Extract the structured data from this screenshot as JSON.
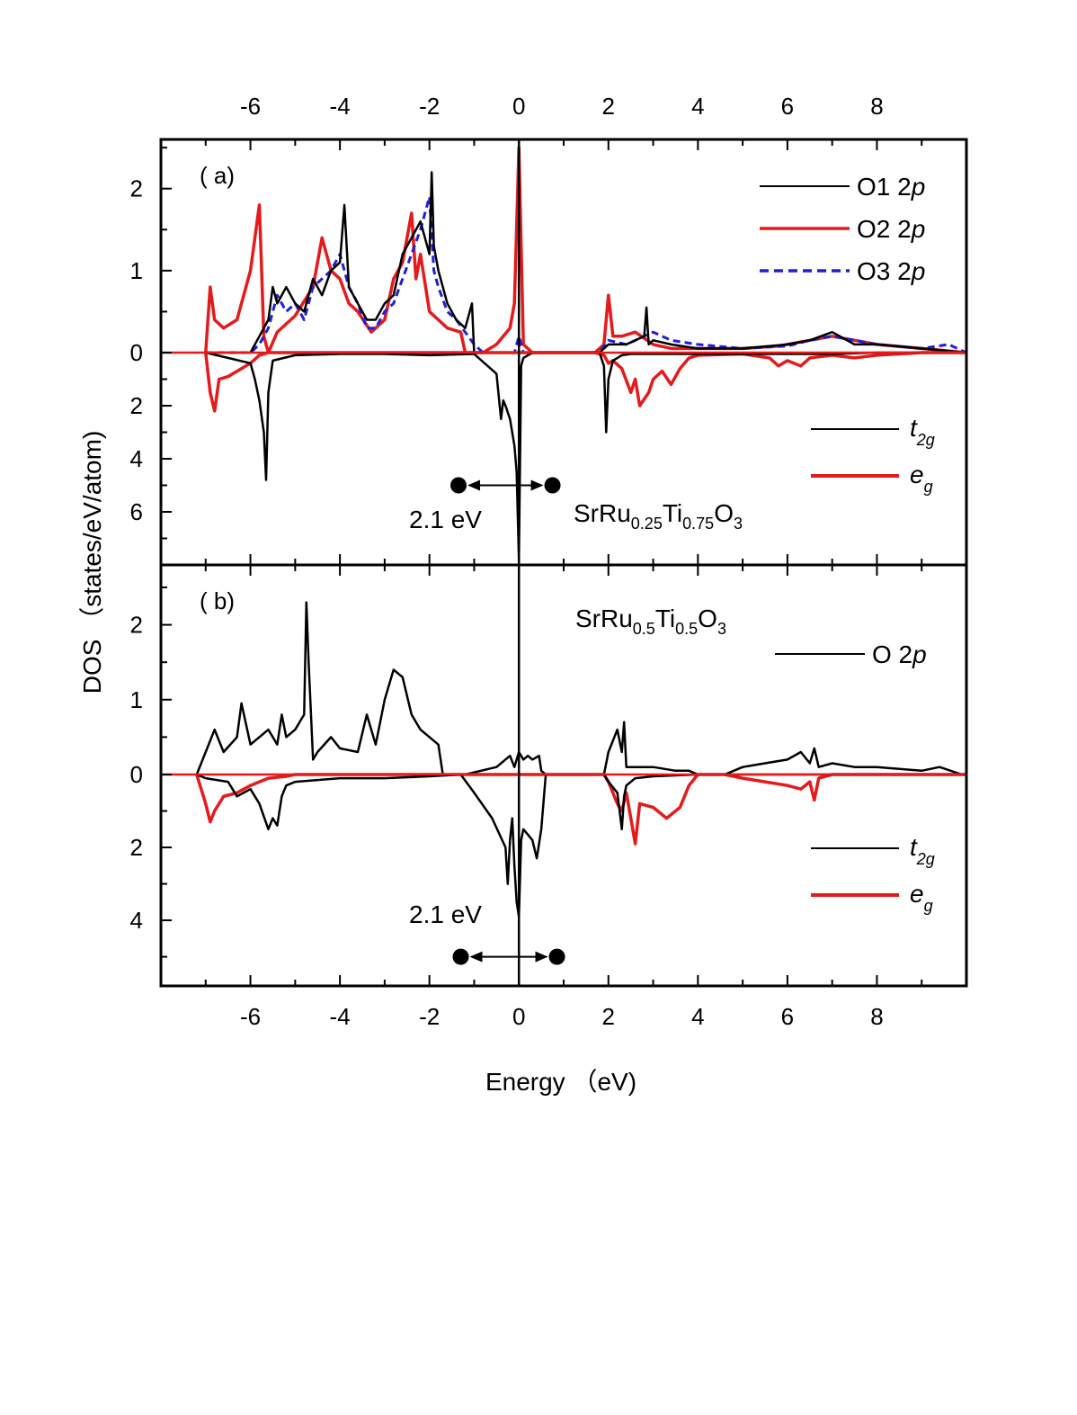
{
  "chart_data": {
    "type": "line",
    "xlabel": "Energy （eV)",
    "ylabel": "DOS （states/eV/atom)",
    "xlim": [
      -8,
      10
    ],
    "x_ticks": [
      -6,
      -4,
      -2,
      0,
      2,
      4,
      6,
      8
    ],
    "x_tick_labels": [
      "-6",
      "-4",
      "-2",
      "0",
      "2",
      "4",
      "6",
      "8"
    ],
    "panels": [
      {
        "label": "( a)",
        "compound": {
          "base": "SrRu",
          "s1": "0.25",
          "mid": "Ti",
          "s2": "0.75",
          "end": "O",
          "s3": "3"
        },
        "ylim": [
          -8.0,
          2.6
        ],
        "y_ticks": [
          2,
          1,
          0,
          -2,
          -4,
          -6
        ],
        "y_tick_labels": [
          "2",
          "1",
          "0",
          "2",
          "4",
          "6"
        ],
        "gap_label": "2.1 eV",
        "gap_x": [
          -1.35,
          0.75
        ],
        "gap_y": -5.0,
        "legend_top": [
          {
            "name": "O1 2",
            "italic": "p",
            "color": "#000000",
            "style": "solid"
          },
          {
            "name": "O2 2",
            "italic": "p",
            "color": "#e41a1c",
            "style": "solid"
          },
          {
            "name": "O3 2",
            "italic": "p",
            "color": "#1f1fd6",
            "style": "dashed"
          }
        ],
        "legend_bottom": [
          {
            "name": "t",
            "sub": "2g",
            "color": "#000000"
          },
          {
            "name": "e",
            "sub": "g",
            "color": "#e41a1c"
          }
        ],
        "series": [
          {
            "color": "#e41a1c",
            "width": 3.5,
            "dash": "",
            "x": [
              -7.0,
              -6.9,
              -6.8,
              -6.6,
              -6.3,
              -6.0,
              -5.8,
              -5.7,
              -5.6,
              -5.4,
              -5.0,
              -4.6,
              -4.4,
              -4.2,
              -4.0,
              -3.8,
              -3.6,
              -3.3,
              -3.0,
              -2.8,
              -2.6,
              -2.4,
              -2.3,
              -2.2,
              -2.0,
              -1.8,
              -1.6,
              -1.3,
              -1.2,
              -1.1,
              -0.8,
              -0.5,
              -0.2,
              -0.1,
              0.0,
              0.1,
              0.3,
              1.7,
              1.9,
              2.0,
              2.1,
              2.3,
              2.6,
              3.0,
              3.4,
              4.0,
              5.0,
              5.8,
              6.5,
              7.0,
              7.5,
              8.0,
              9.0,
              10.0
            ],
            "y": [
              0.0,
              0.8,
              0.4,
              0.3,
              0.4,
              1.0,
              1.8,
              0.2,
              0.0,
              0.25,
              0.45,
              0.8,
              1.4,
              1.0,
              0.9,
              0.6,
              0.5,
              0.25,
              0.4,
              0.9,
              1.1,
              1.7,
              0.9,
              1.2,
              0.5,
              0.4,
              0.3,
              0.25,
              0.0,
              0.0,
              0.0,
              0.1,
              0.3,
              0.6,
              2.5,
              0.1,
              0.0,
              0.0,
              0.1,
              0.7,
              0.2,
              0.2,
              0.25,
              0.1,
              0.05,
              0.05,
              0.05,
              0.08,
              0.15,
              0.2,
              0.15,
              0.1,
              0.05,
              0.0
            ]
          },
          {
            "color": "#1f1fd6",
            "width": 3.0,
            "dash": "8,5",
            "x": [
              -7.0,
              -6.0,
              -5.8,
              -5.6,
              -5.4,
              -5.2,
              -5.0,
              -4.8,
              -4.6,
              -4.4,
              -4.2,
              -4.0,
              -3.8,
              -3.6,
              -3.4,
              -3.2,
              -3.0,
              -2.8,
              -2.6,
              -2.4,
              -2.2,
              -2.0,
              -1.9,
              -1.8,
              -1.6,
              -1.4,
              -1.2,
              -1.0,
              -0.8,
              -0.1,
              0.0,
              0.1,
              0.3,
              1.8,
              2.0,
              2.4,
              2.8,
              3.0,
              3.4,
              4.0,
              5.0,
              6.0,
              6.5,
              7.0,
              7.5,
              8.0,
              9.0,
              9.6,
              10.0
            ],
            "y": [
              0.0,
              0.0,
              0.1,
              0.3,
              0.7,
              0.5,
              0.6,
              0.4,
              0.8,
              0.9,
              1.0,
              1.2,
              0.8,
              0.6,
              0.3,
              0.3,
              0.5,
              0.6,
              0.9,
              1.2,
              1.5,
              1.9,
              1.0,
              0.8,
              0.5,
              0.4,
              0.25,
              0.1,
              0.0,
              0.0,
              0.2,
              0.0,
              0.0,
              0.0,
              0.15,
              0.1,
              0.2,
              0.25,
              0.15,
              0.1,
              0.05,
              0.08,
              0.15,
              0.2,
              0.15,
              0.1,
              0.05,
              0.1,
              0.0
            ]
          },
          {
            "color": "#000000",
            "width": 2.5,
            "dash": "",
            "x": [
              -7.0,
              -6.0,
              -5.8,
              -5.6,
              -5.5,
              -5.4,
              -5.2,
              -5.0,
              -4.8,
              -4.6,
              -4.4,
              -4.2,
              -4.0,
              -3.9,
              -3.8,
              -3.6,
              -3.4,
              -3.2,
              -3.0,
              -2.8,
              -2.6,
              -2.4,
              -2.2,
              -2.0,
              -1.95,
              -1.9,
              -1.8,
              -1.6,
              -1.4,
              -1.2,
              -1.05,
              -1.0,
              -0.95,
              -0.3,
              0.0,
              0.3,
              1.8,
              2.0,
              2.4,
              2.8,
              2.85,
              2.9,
              3.0,
              3.4,
              4.0,
              5.0,
              6.0,
              6.5,
              7.0,
              7.5,
              8.0,
              9.0,
              10.0
            ],
            "y": [
              0.0,
              0.0,
              0.2,
              0.4,
              0.8,
              0.6,
              0.8,
              0.6,
              0.5,
              0.9,
              0.7,
              1.0,
              1.1,
              1.8,
              0.8,
              0.6,
              0.4,
              0.4,
              0.6,
              0.7,
              1.2,
              1.4,
              1.6,
              1.2,
              2.2,
              1.3,
              1.0,
              0.6,
              0.4,
              0.3,
              0.6,
              0.0,
              0.0,
              0.0,
              0.0,
              0.0,
              0.0,
              0.1,
              0.1,
              0.2,
              0.55,
              0.1,
              0.15,
              0.1,
              0.05,
              0.05,
              0.1,
              0.15,
              0.25,
              0.1,
              0.1,
              0.05,
              0.0
            ]
          },
          {
            "color": "#e41a1c",
            "width": 3.5,
            "dash": "",
            "x": [
              -7.0,
              -6.9,
              -6.8,
              -6.7,
              -6.5,
              -6.2,
              -6.0,
              -5.8,
              -5.6,
              -5.5,
              -5.0,
              -4.0,
              -3.0,
              -2.0,
              -1.5,
              1.7,
              1.9,
              2.0,
              2.1,
              2.3,
              2.5,
              2.6,
              2.7,
              2.9,
              3.0,
              3.2,
              3.4,
              3.6,
              3.8,
              4.0,
              5.0,
              5.6,
              5.8,
              6.0,
              6.3,
              6.5,
              7.0,
              7.5,
              8.0,
              9.0,
              10.0
            ],
            "y": [
              0.0,
              -1.5,
              -2.2,
              -1.0,
              -0.9,
              -0.6,
              -0.4,
              -0.1,
              0.0,
              0.0,
              0.0,
              0.0,
              0.0,
              0.0,
              0.0,
              0.0,
              -0.1,
              -0.4,
              -0.3,
              -0.6,
              -1.5,
              -1.0,
              -2.0,
              -1.5,
              -1.0,
              -0.7,
              -1.2,
              -0.6,
              -0.2,
              -0.1,
              -0.05,
              -0.2,
              -0.5,
              -0.3,
              -0.5,
              -0.2,
              -0.1,
              -0.2,
              -0.1,
              0.0,
              0.0
            ]
          },
          {
            "color": "#000000",
            "width": 2.5,
            "dash": "",
            "x": [
              -7.0,
              -6.0,
              -5.9,
              -5.8,
              -5.7,
              -5.65,
              -5.6,
              -5.5,
              -5.0,
              -4.0,
              -3.0,
              -2.0,
              -1.0,
              -0.5,
              -0.4,
              -0.35,
              -0.3,
              -0.2,
              -0.1,
              -0.05,
              0.0,
              0.05,
              0.1,
              0.3,
              1.8,
              1.9,
              1.95,
              2.0,
              2.1,
              2.3,
              2.5,
              3.0,
              4.0,
              5.0,
              6.0,
              7.0,
              8.0,
              10.0
            ],
            "y": [
              0.0,
              -0.4,
              -1.0,
              -1.8,
              -3.0,
              -4.8,
              -1.5,
              -0.3,
              -0.1,
              -0.05,
              -0.05,
              -0.1,
              -0.05,
              -0.8,
              -2.5,
              -1.8,
              -2.0,
              -2.5,
              -3.5,
              -4.5,
              -7.8,
              -0.5,
              -0.2,
              0.0,
              0.0,
              -0.5,
              -3.0,
              -1.0,
              -0.3,
              -0.1,
              -0.05,
              -0.05,
              -0.05,
              -0.05,
              -0.05,
              -0.05,
              0.0,
              0.0
            ]
          }
        ]
      },
      {
        "label": "( b)",
        "compound": {
          "base": "SrRu",
          "s1": "0.5",
          "mid": "Ti",
          "s2": "0.5",
          "end": "O",
          "s3": "3"
        },
        "ylim": [
          -5.8,
          2.8
        ],
        "y_ticks": [
          2,
          1,
          0,
          -2,
          -4
        ],
        "y_tick_labels": [
          "2",
          "1",
          "0",
          "2",
          "4"
        ],
        "gap_label": "2.1 eV",
        "gap_x": [
          -1.3,
          0.85
        ],
        "gap_y": -5.0,
        "legend_top": [
          {
            "name": "O 2",
            "italic": "p",
            "color": "#000000",
            "style": "solid"
          }
        ],
        "legend_bottom": [
          {
            "name": "t",
            "sub": "2g",
            "color": "#000000"
          },
          {
            "name": "e",
            "sub": "g",
            "color": "#e41a1c"
          }
        ],
        "series": [
          {
            "color": "#000000",
            "width": 2.5,
            "dash": "",
            "x": [
              -7.2,
              -7.0,
              -6.8,
              -6.6,
              -6.3,
              -6.2,
              -6.0,
              -5.8,
              -5.6,
              -5.4,
              -5.3,
              -5.2,
              -5.0,
              -4.8,
              -4.75,
              -4.7,
              -4.6,
              -4.5,
              -4.2,
              -4.0,
              -3.6,
              -3.4,
              -3.2,
              -3.0,
              -2.8,
              -2.6,
              -2.4,
              -2.2,
              -2.0,
              -1.8,
              -1.7,
              -1.6,
              -1.2,
              -0.5,
              -0.2,
              -0.1,
              0.0,
              0.1,
              0.2,
              0.3,
              0.45,
              0.5,
              0.6,
              1.9,
              2.0,
              2.2,
              2.3,
              2.35,
              2.4,
              2.6,
              3.0,
              3.5,
              3.8,
              4.0,
              4.6,
              5.0,
              5.5,
              6.0,
              6.3,
              6.5,
              6.6,
              6.7,
              7.0,
              7.5,
              8.0,
              9.0,
              9.4,
              9.9
            ],
            "y": [
              0.0,
              0.3,
              0.6,
              0.3,
              0.5,
              0.95,
              0.4,
              0.5,
              0.6,
              0.4,
              0.8,
              0.5,
              0.6,
              0.8,
              2.3,
              1.5,
              0.2,
              0.3,
              0.5,
              0.35,
              0.3,
              0.8,
              0.4,
              1.0,
              1.4,
              1.3,
              0.8,
              0.6,
              0.5,
              0.4,
              0.0,
              0.0,
              0.0,
              0.1,
              0.25,
              0.1,
              0.3,
              0.2,
              0.25,
              0.2,
              0.25,
              0.05,
              0.0,
              0.0,
              0.3,
              0.6,
              0.3,
              0.7,
              0.1,
              0.1,
              0.1,
              0.05,
              0.05,
              0.0,
              0.0,
              0.1,
              0.15,
              0.2,
              0.3,
              0.15,
              0.35,
              0.1,
              0.15,
              0.1,
              0.1,
              0.05,
              0.1,
              0.0
            ]
          },
          {
            "color": "#e41a1c",
            "width": 3.5,
            "dash": "",
            "x": [
              -7.2,
              -7.0,
              -6.9,
              -6.8,
              -6.6,
              -6.3,
              -6.0,
              -5.8,
              -5.6,
              -5.2,
              -5.0,
              -4.0,
              -3.0,
              -1.5,
              1.9,
              2.0,
              2.1,
              2.2,
              2.3,
              2.4,
              2.5,
              2.6,
              2.7,
              3.0,
              3.3,
              3.6,
              3.8,
              4.0,
              4.6,
              5.0,
              5.5,
              6.0,
              6.3,
              6.5,
              6.6,
              6.7,
              7.0,
              10.0
            ],
            "y": [
              0.0,
              -0.8,
              -1.3,
              -1.0,
              -0.6,
              -0.5,
              -0.3,
              -0.2,
              -0.1,
              -0.05,
              0.0,
              0.0,
              0.0,
              0.0,
              0.0,
              -0.2,
              -0.5,
              -0.8,
              -1.0,
              -0.5,
              -1.2,
              -1.9,
              -0.8,
              -0.9,
              -1.2,
              -0.9,
              -0.3,
              0.0,
              0.0,
              -0.1,
              -0.2,
              -0.3,
              -0.4,
              -0.2,
              -0.7,
              -0.1,
              0.0,
              0.0
            ]
          },
          {
            "color": "#000000",
            "width": 2.5,
            "dash": "",
            "x": [
              -7.2,
              -7.0,
              -6.5,
              -6.3,
              -6.0,
              -5.8,
              -5.6,
              -5.5,
              -5.4,
              -5.3,
              -5.2,
              -5.0,
              -4.0,
              -3.0,
              -2.0,
              -1.3,
              -1.0,
              -0.6,
              -0.3,
              -0.25,
              -0.2,
              -0.15,
              -0.1,
              -0.05,
              0.0,
              0.05,
              0.1,
              0.3,
              0.4,
              0.5,
              0.6,
              1.9,
              2.0,
              2.2,
              2.3,
              2.35,
              2.4,
              2.6,
              3.0,
              4.0,
              10.0
            ],
            "y": [
              0.0,
              -0.1,
              -0.2,
              -0.6,
              -0.4,
              -0.8,
              -1.5,
              -1.2,
              -1.4,
              -0.6,
              -0.3,
              -0.2,
              -0.1,
              -0.1,
              -0.05,
              0.0,
              -0.5,
              -1.2,
              -2.0,
              -3.0,
              -1.8,
              -1.2,
              -2.5,
              -3.5,
              -3.9,
              -1.8,
              -1.5,
              -1.8,
              -2.3,
              -1.5,
              0.0,
              0.0,
              -0.2,
              -0.5,
              -1.5,
              -0.6,
              -0.3,
              -0.1,
              -0.05,
              0.0,
              0.0
            ]
          }
        ]
      }
    ]
  }
}
